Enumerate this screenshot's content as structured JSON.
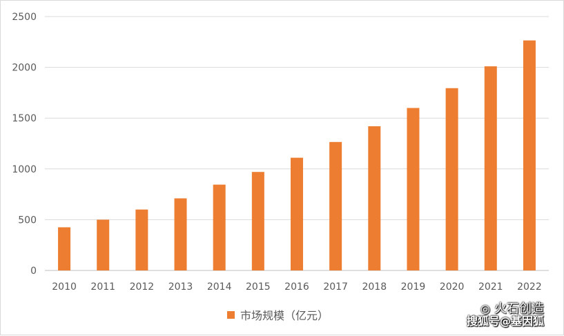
{
  "chart_data": {
    "type": "bar",
    "categories": [
      "2010",
      "2011",
      "2012",
      "2013",
      "2014",
      "2015",
      "2016",
      "2017",
      "2018",
      "2019",
      "2020",
      "2021",
      "2022"
    ],
    "series": [
      {
        "name": "市场规模（亿元）",
        "values": [
          425,
          500,
          600,
          710,
          845,
          970,
          1110,
          1265,
          1420,
          1600,
          1795,
          2010,
          2265
        ]
      }
    ],
    "ylim": [
      0,
      2500
    ],
    "yticks": [
      0,
      500,
      1000,
      1500,
      2000,
      2500
    ],
    "grid": true,
    "legend_position": "bottom-center",
    "xlabel": "",
    "ylabel": ""
  },
  "colors": {
    "bar": "#ed7d31",
    "grid": "#d9d9d9",
    "axis": "#bfbfbf",
    "text": "#595959"
  },
  "watermark": {
    "line1": "火石创造",
    "line2": "搜狐号@基因狐",
    "icon": "wechat-icon"
  }
}
